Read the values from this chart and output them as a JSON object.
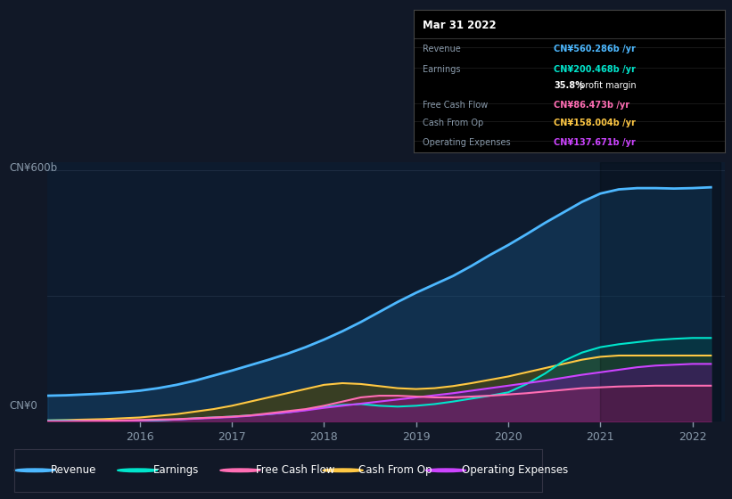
{
  "bg_color": "#111827",
  "chart_bg": "#0d1b2e",
  "grid_color": "#1e2d42",
  "title_date": "Mar 31 2022",
  "info_box": {
    "Revenue": {
      "value": "CN¥560.286b /yr",
      "color": "#4db8ff"
    },
    "Earnings": {
      "value": "CN¥200.468b /yr",
      "color": "#00e5cc"
    },
    "profit_margin": "35.8% profit margin",
    "Free Cash Flow": {
      "value": "CN¥86.473b /yr",
      "color": "#ff6eb4"
    },
    "Cash From Op": {
      "value": "CN¥158.004b /yr",
      "color": "#ffc844"
    },
    "Operating Expenses": {
      "value": "CN¥137.671b /yr",
      "color": "#cc44ff"
    }
  },
  "ylabel": "CN¥600b",
  "y0label": "CN¥0",
  "x_ticks": [
    2016,
    2017,
    2018,
    2019,
    2020,
    2021,
    2022
  ],
  "legend": [
    {
      "label": "Revenue",
      "color": "#4db8ff"
    },
    {
      "label": "Earnings",
      "color": "#00e5cc"
    },
    {
      "label": "Free Cash Flow",
      "color": "#ff6eb4"
    },
    {
      "label": "Cash From Op",
      "color": "#ffc844"
    },
    {
      "label": "Operating Expenses",
      "color": "#cc44ff"
    }
  ],
  "series": {
    "x": [
      2015.0,
      2015.2,
      2015.4,
      2015.6,
      2015.8,
      2016.0,
      2016.2,
      2016.4,
      2016.6,
      2016.8,
      2017.0,
      2017.2,
      2017.4,
      2017.6,
      2017.8,
      2018.0,
      2018.2,
      2018.4,
      2018.6,
      2018.8,
      2019.0,
      2019.2,
      2019.4,
      2019.6,
      2019.8,
      2020.0,
      2020.2,
      2020.4,
      2020.6,
      2020.8,
      2021.0,
      2021.2,
      2021.4,
      2021.6,
      2021.8,
      2022.0,
      2022.2
    ],
    "Revenue": [
      62,
      63,
      65,
      67,
      70,
      74,
      80,
      88,
      98,
      110,
      122,
      135,
      148,
      162,
      178,
      196,
      216,
      238,
      262,
      286,
      308,
      328,
      348,
      372,
      398,
      422,
      448,
      475,
      500,
      525,
      545,
      555,
      558,
      558,
      557,
      558,
      560
    ],
    "Earnings": [
      3,
      3,
      2,
      1,
      1,
      2,
      3,
      5,
      8,
      10,
      12,
      15,
      18,
      22,
      28,
      35,
      40,
      42,
      38,
      36,
      38,
      42,
      48,
      55,
      62,
      70,
      90,
      115,
      145,
      165,
      178,
      185,
      190,
      195,
      198,
      200,
      200
    ],
    "Free Cash Flow": [
      1,
      1,
      2,
      2,
      3,
      4,
      5,
      6,
      8,
      10,
      12,
      15,
      20,
      25,
      30,
      38,
      48,
      58,
      62,
      62,
      60,
      58,
      58,
      60,
      62,
      65,
      68,
      72,
      76,
      80,
      82,
      84,
      85,
      86,
      86,
      86,
      86
    ],
    "Cash From Op": [
      3,
      4,
      5,
      6,
      8,
      10,
      14,
      18,
      24,
      30,
      38,
      48,
      58,
      68,
      78,
      88,
      92,
      90,
      85,
      80,
      78,
      80,
      85,
      92,
      100,
      108,
      118,
      128,
      138,
      148,
      155,
      158,
      158,
      158,
      158,
      158,
      158
    ],
    "Operating Expenses": [
      1,
      1,
      1,
      2,
      2,
      3,
      4,
      5,
      7,
      9,
      11,
      14,
      18,
      22,
      27,
      33,
      38,
      43,
      48,
      53,
      58,
      63,
      68,
      74,
      80,
      86,
      92,
      98,
      105,
      112,
      118,
      124,
      130,
      134,
      136,
      138,
      138
    ]
  }
}
